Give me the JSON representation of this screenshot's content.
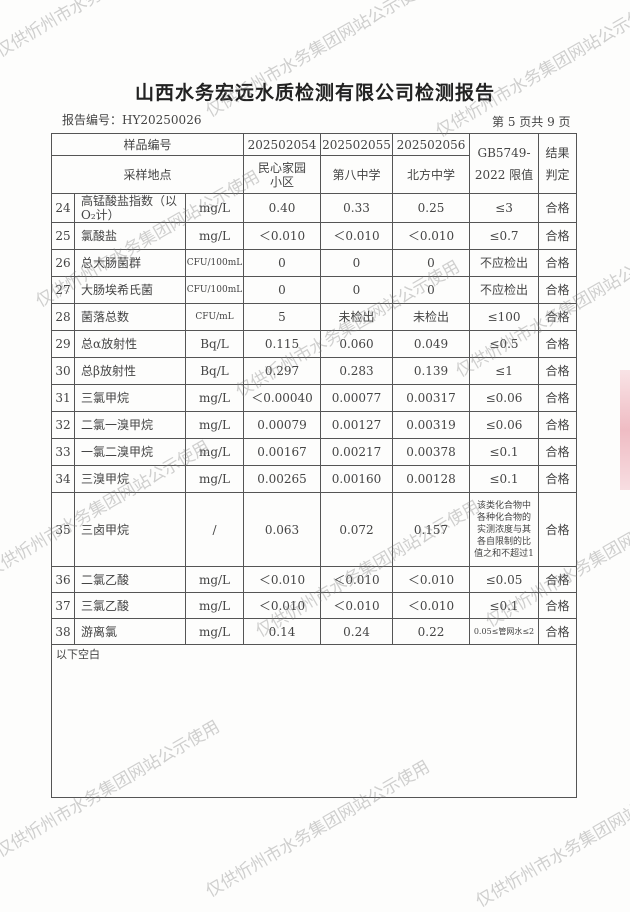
{
  "header": {
    "title": "山西水务宏远水质检测有限公司检测报告",
    "report_no": "报告编号：HY20250026",
    "page_no": "第 5 页共 9 页"
  },
  "table": {
    "sample_no_label": "样品编号",
    "location_label": "采样地点",
    "standard_label": "GB5749-2022 限值",
    "result_label": "结果判定",
    "samples": [
      {
        "no": "202502054",
        "location": "民心家园小区"
      },
      {
        "no": "202502055",
        "location": "第八中学"
      },
      {
        "no": "202502056",
        "location": "北方中学"
      }
    ],
    "rows": [
      {
        "n": "24",
        "item": "高锰酸盐指数（以O₂计）",
        "unit": "mg/L",
        "v": [
          "0.40",
          "0.33",
          "0.25"
        ],
        "limit": "≤3",
        "result": "合格"
      },
      {
        "n": "25",
        "item": "氯酸盐",
        "unit": "mg/L",
        "v": [
          "＜0.010",
          "＜0.010",
          "＜0.010"
        ],
        "limit": "≤0.7",
        "result": "合格"
      },
      {
        "n": "26",
        "item": "总大肠菌群",
        "unit": "CFU/100mL",
        "v": [
          "0",
          "0",
          "0"
        ],
        "limit": "不应检出",
        "result": "合格"
      },
      {
        "n": "27",
        "item": "大肠埃希氏菌",
        "unit": "CFU/100mL",
        "v": [
          "0",
          "0",
          "0"
        ],
        "limit": "不应检出",
        "result": "合格"
      },
      {
        "n": "28",
        "item": "菌落总数",
        "unit": "CFU/mL",
        "v": [
          "5",
          "未检出",
          "未检出"
        ],
        "limit": "≤100",
        "result": "合格"
      },
      {
        "n": "29",
        "item": "总α放射性",
        "unit": "Bq/L",
        "v": [
          "0.115",
          "0.060",
          "0.049"
        ],
        "limit": "≤0.5",
        "result": "合格"
      },
      {
        "n": "30",
        "item": "总β放射性",
        "unit": "Bq/L",
        "v": [
          "0.297",
          "0.283",
          "0.139"
        ],
        "limit": "≤1",
        "result": "合格"
      },
      {
        "n": "31",
        "item": "三氯甲烷",
        "unit": "mg/L",
        "v": [
          "＜0.00040",
          "0.00077",
          "0.00317"
        ],
        "limit": "≤0.06",
        "result": "合格"
      },
      {
        "n": "32",
        "item": "二氯一溴甲烷",
        "unit": "mg/L",
        "v": [
          "0.00079",
          "0.00127",
          "0.00319"
        ],
        "limit": "≤0.06",
        "result": "合格"
      },
      {
        "n": "33",
        "item": "一氯二溴甲烷",
        "unit": "mg/L",
        "v": [
          "0.00167",
          "0.00217",
          "0.00378"
        ],
        "limit": "≤0.1",
        "result": "合格"
      },
      {
        "n": "34",
        "item": "三溴甲烷",
        "unit": "mg/L",
        "v": [
          "0.00265",
          "0.00160",
          "0.00128"
        ],
        "limit": "≤0.1",
        "result": "合格"
      },
      {
        "n": "35",
        "item": "三卤甲烷",
        "unit": "/",
        "v": [
          "0.063",
          "0.072",
          "0.157"
        ],
        "limit": "该类化合物中各种化合物的实测浓度与其各自限制的比值之和不超过1",
        "result": "合格"
      },
      {
        "n": "36",
        "item": "二氯乙酸",
        "unit": "mg/L",
        "v": [
          "＜0.010",
          "＜0.010",
          "＜0.010"
        ],
        "limit": "≤0.05",
        "result": "合格"
      },
      {
        "n": "37",
        "item": "三氯乙酸",
        "unit": "mg/L",
        "v": [
          "＜0.010",
          "＜0.010",
          "＜0.010"
        ],
        "limit": "≤0.1",
        "result": "合格"
      },
      {
        "n": "38",
        "item": "游离氯",
        "unit": "mg/L",
        "v": [
          "0.14",
          "0.24",
          "0.22"
        ],
        "limit": "0.05≤管网水≤2",
        "result": "合格"
      }
    ],
    "footer_note": "以下空白"
  },
  "watermark": "仅供忻州市水务集团网站公示使用"
}
